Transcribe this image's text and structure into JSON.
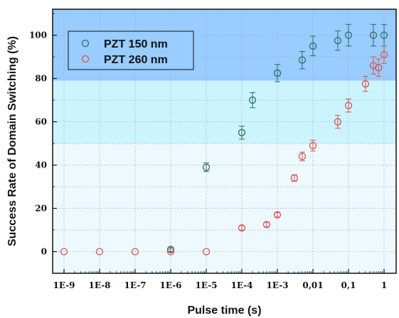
{
  "chart_data": {
    "type": "scatter",
    "xlabel": "Pulse time (s)",
    "ylabel": "Success Rate of Domain Switching (%)",
    "x_scale": "log",
    "xlim": [
      1e-09,
      2
    ],
    "ylim": [
      -10,
      112
    ],
    "x_ticks": [
      {
        "value": 1e-09,
        "label": "1E-9"
      },
      {
        "value": 1e-08,
        "label": "1E-8"
      },
      {
        "value": 1e-07,
        "label": "1E-7"
      },
      {
        "value": 1e-06,
        "label": "1E-6"
      },
      {
        "value": 1e-05,
        "label": "1E-5"
      },
      {
        "value": 0.0001,
        "label": "1E-4"
      },
      {
        "value": 0.001,
        "label": "1E-3"
      },
      {
        "value": 0.01,
        "label": "0,01"
      },
      {
        "value": 0.1,
        "label": "0,1"
      },
      {
        "value": 1,
        "label": "1"
      }
    ],
    "y_ticks": [
      0,
      20,
      40,
      60,
      80,
      100
    ],
    "grid": true,
    "legend_position": "top-left",
    "background_bands": [
      {
        "from": -10,
        "to": 50,
        "color": "#eef8ff"
      },
      {
        "from": 50,
        "to": 79,
        "color": "#ccf4ff"
      },
      {
        "from": 79,
        "to": 112,
        "color": "#99ccff"
      }
    ],
    "series": [
      {
        "name": "PZT 150 nm",
        "color": "#2a6e68",
        "points": [
          {
            "x": 1e-06,
            "y": 1,
            "err": 1
          },
          {
            "x": 1e-05,
            "y": 39,
            "err": 2
          },
          {
            "x": 0.0001,
            "y": 55,
            "err": 3
          },
          {
            "x": 0.0002,
            "y": 70,
            "err": 3.5
          },
          {
            "x": 0.001,
            "y": 82.5,
            "err": 4
          },
          {
            "x": 0.005,
            "y": 88.5,
            "err": 4
          },
          {
            "x": 0.01,
            "y": 95,
            "err": 4.5
          },
          {
            "x": 0.05,
            "y": 97.5,
            "err": 4.5
          },
          {
            "x": 0.1,
            "y": 100,
            "err": 5
          },
          {
            "x": 0.5,
            "y": 100,
            "err": 5
          },
          {
            "x": 1,
            "y": 100,
            "err": 5
          }
        ]
      },
      {
        "name": "PZT 260 nm",
        "color": "#d9534f",
        "points": [
          {
            "x": 1e-09,
            "y": 0,
            "err": 0
          },
          {
            "x": 1e-08,
            "y": 0,
            "err": 0
          },
          {
            "x": 1e-07,
            "y": 0,
            "err": 0
          },
          {
            "x": 1e-06,
            "y": 0,
            "err": 0
          },
          {
            "x": 1e-05,
            "y": 0,
            "err": 0
          },
          {
            "x": 0.0001,
            "y": 11,
            "err": 1
          },
          {
            "x": 0.0005,
            "y": 12.5,
            "err": 1
          },
          {
            "x": 0.001,
            "y": 17,
            "err": 1
          },
          {
            "x": 0.003,
            "y": 34,
            "err": 1.5
          },
          {
            "x": 0.005,
            "y": 44,
            "err": 2
          },
          {
            "x": 0.01,
            "y": 49,
            "err": 2.5
          },
          {
            "x": 0.05,
            "y": 60,
            "err": 3
          },
          {
            "x": 0.1,
            "y": 67.5,
            "err": 3
          },
          {
            "x": 0.3,
            "y": 77.5,
            "err": 3.5
          },
          {
            "x": 0.5,
            "y": 86,
            "err": 4
          },
          {
            "x": 0.7,
            "y": 85,
            "err": 4
          },
          {
            "x": 1,
            "y": 91,
            "err": 4
          }
        ]
      }
    ]
  }
}
